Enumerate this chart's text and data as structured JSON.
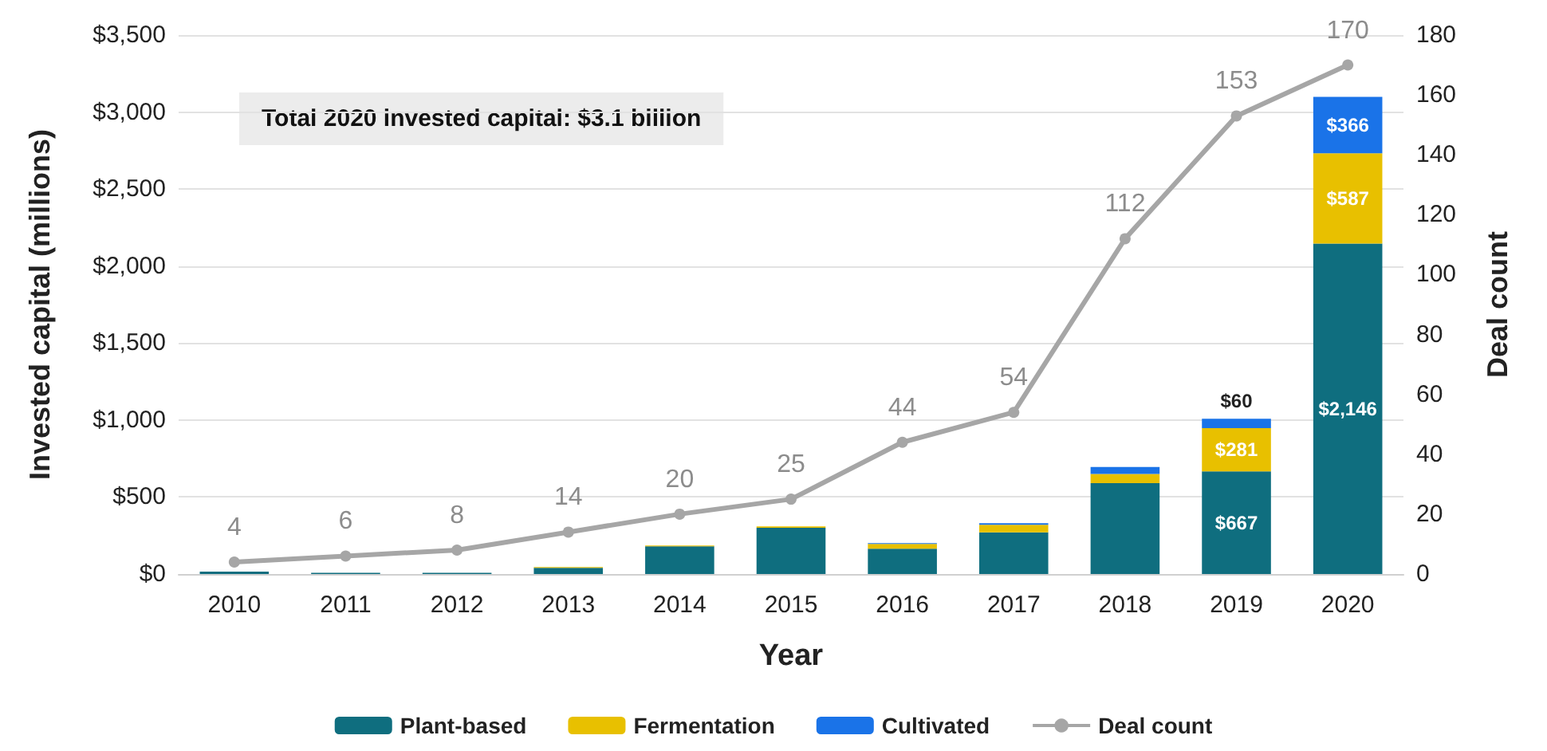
{
  "chart_data": {
    "type": "bar",
    "stacked": true,
    "xlabel": "Year",
    "ylabel": "Invested capital (millions)",
    "y2label": "Deal count",
    "annotations": [
      "Total 2020 invested capital: $3.1 billion"
    ],
    "categories": [
      "2010",
      "2011",
      "2012",
      "2013",
      "2014",
      "2015",
      "2016",
      "2017",
      "2018",
      "2019",
      "2020"
    ],
    "series": [
      {
        "name": "Plant-based",
        "color": "#0f6e7f",
        "values": [
          15,
          8,
          8,
          40,
          180,
          300,
          165,
          270,
          590,
          667,
          2146
        ],
        "value_labels": [
          null,
          null,
          null,
          null,
          null,
          null,
          null,
          null,
          null,
          "$667",
          "$2,146"
        ]
      },
      {
        "name": "Fermentation",
        "color": "#e8c000",
        "values": [
          0,
          0,
          0,
          5,
          5,
          10,
          30,
          50,
          60,
          281,
          587
        ],
        "value_labels": [
          null,
          null,
          null,
          null,
          null,
          null,
          null,
          null,
          null,
          "$281",
          "$587"
        ]
      },
      {
        "name": "Cultivated",
        "color": "#1a73e8",
        "values": [
          0,
          0,
          0,
          0,
          0,
          0,
          5,
          10,
          45,
          60,
          366
        ],
        "value_labels": [
          null,
          null,
          null,
          null,
          null,
          null,
          null,
          null,
          null,
          "$60",
          "$366"
        ]
      },
      {
        "name": "Deal count",
        "type": "line",
        "axis": "y2",
        "color": "#a6a6a6",
        "values": [
          4,
          6,
          8,
          14,
          20,
          25,
          44,
          54,
          112,
          153,
          170
        ],
        "value_labels": [
          "4",
          "6",
          "8",
          "14",
          "20",
          "25",
          "44",
          "54",
          "112",
          "153",
          "170"
        ]
      }
    ],
    "ylim": [
      0,
      3500
    ],
    "yticks": [
      {
        "value": 0,
        "label": "$0"
      },
      {
        "value": 500,
        "label": "$500"
      },
      {
        "value": 1000,
        "label": "$1,000"
      },
      {
        "value": 1500,
        "label": "$1,500"
      },
      {
        "value": 2000,
        "label": "$2,000"
      },
      {
        "value": 2500,
        "label": "$2,500"
      },
      {
        "value": 3000,
        "label": "$3,000"
      },
      {
        "value": 3500,
        "label": "$3,500"
      }
    ],
    "y2lim": [
      0,
      180
    ],
    "y2ticks": [
      0,
      20,
      40,
      60,
      80,
      100,
      120,
      140,
      160,
      180
    ],
    "grid": "y",
    "legend": "bottom",
    "marker": "circle",
    "line_style": "solid"
  }
}
